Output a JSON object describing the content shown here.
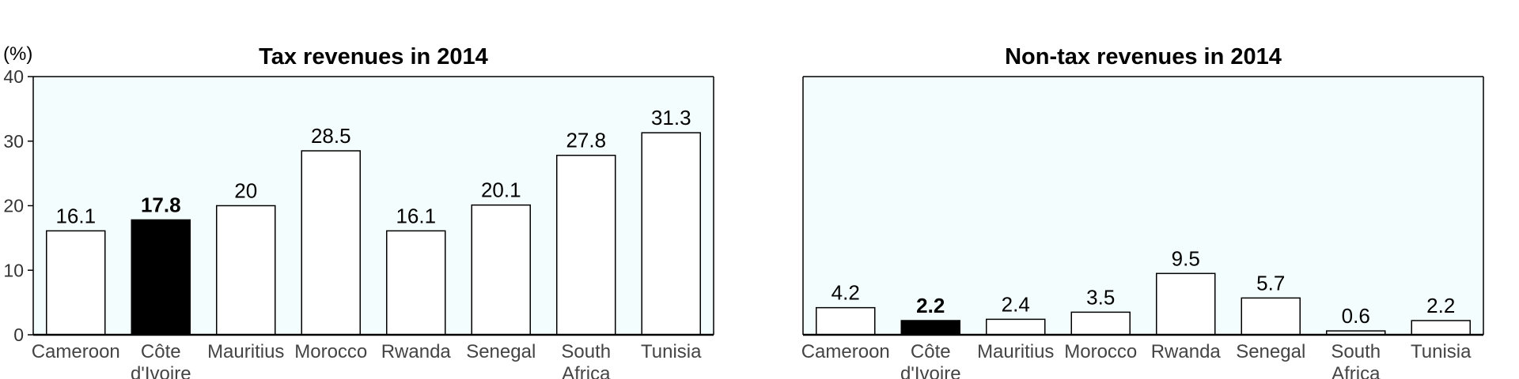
{
  "chart_data": [
    {
      "type": "bar",
      "title": "Tax revenues in 2014",
      "ylabel": "(%)",
      "ylim": [
        0,
        40
      ],
      "yticks": [
        0,
        10,
        20,
        30,
        40
      ],
      "show_yaxis": true,
      "categories": [
        "Cameroon",
        "Côte d'Ivoire",
        "Mauritius",
        "Morocco",
        "Rwanda",
        "Senegal",
        "South Africa",
        "Tunisia"
      ],
      "category_labels": [
        [
          "Cameroon"
        ],
        [
          "Côte",
          "d'Ivoire"
        ],
        [
          "Mauritius"
        ],
        [
          "Morocco"
        ],
        [
          "Rwanda"
        ],
        [
          "Senegal"
        ],
        [
          "South",
          "Africa"
        ],
        [
          "Tunisia"
        ]
      ],
      "values": [
        16.1,
        17.8,
        20,
        28.5,
        16.1,
        20.1,
        27.8,
        31.3
      ],
      "value_labels": [
        "16.1",
        "17.8",
        "20",
        "28.5",
        "16.1",
        "20.1",
        "27.8",
        "31.3"
      ],
      "highlight": "Côte d'Ivoire",
      "grid": false
    },
    {
      "type": "bar",
      "title": "Non-tax revenues in 2014",
      "ylim": [
        0,
        40
      ],
      "show_yaxis": false,
      "categories": [
        "Cameroon",
        "Côte d'Ivoire",
        "Mauritius",
        "Morocco",
        "Rwanda",
        "Senegal",
        "South Africa",
        "Tunisia"
      ],
      "category_labels": [
        [
          "Cameroon"
        ],
        [
          "Côte",
          "d'Ivoire"
        ],
        [
          "Mauritius"
        ],
        [
          "Morocco"
        ],
        [
          "Rwanda"
        ],
        [
          "Senegal"
        ],
        [
          "South",
          "Africa"
        ],
        [
          "Tunisia"
        ]
      ],
      "values": [
        4.2,
        2.2,
        2.4,
        3.5,
        9.5,
        5.7,
        0.6,
        2.2
      ],
      "value_labels": [
        "4.2",
        "2.2",
        "2.4",
        "3.5",
        "9.5",
        "5.7",
        "0.6",
        "2.2"
      ],
      "highlight": "Côte d'Ivoire",
      "grid": false
    }
  ],
  "colors": {
    "plot_background": "#f3fdfd",
    "bar_fill": "#ffffff",
    "bar_highlight": "#000000",
    "bar_stroke": "#000000"
  }
}
